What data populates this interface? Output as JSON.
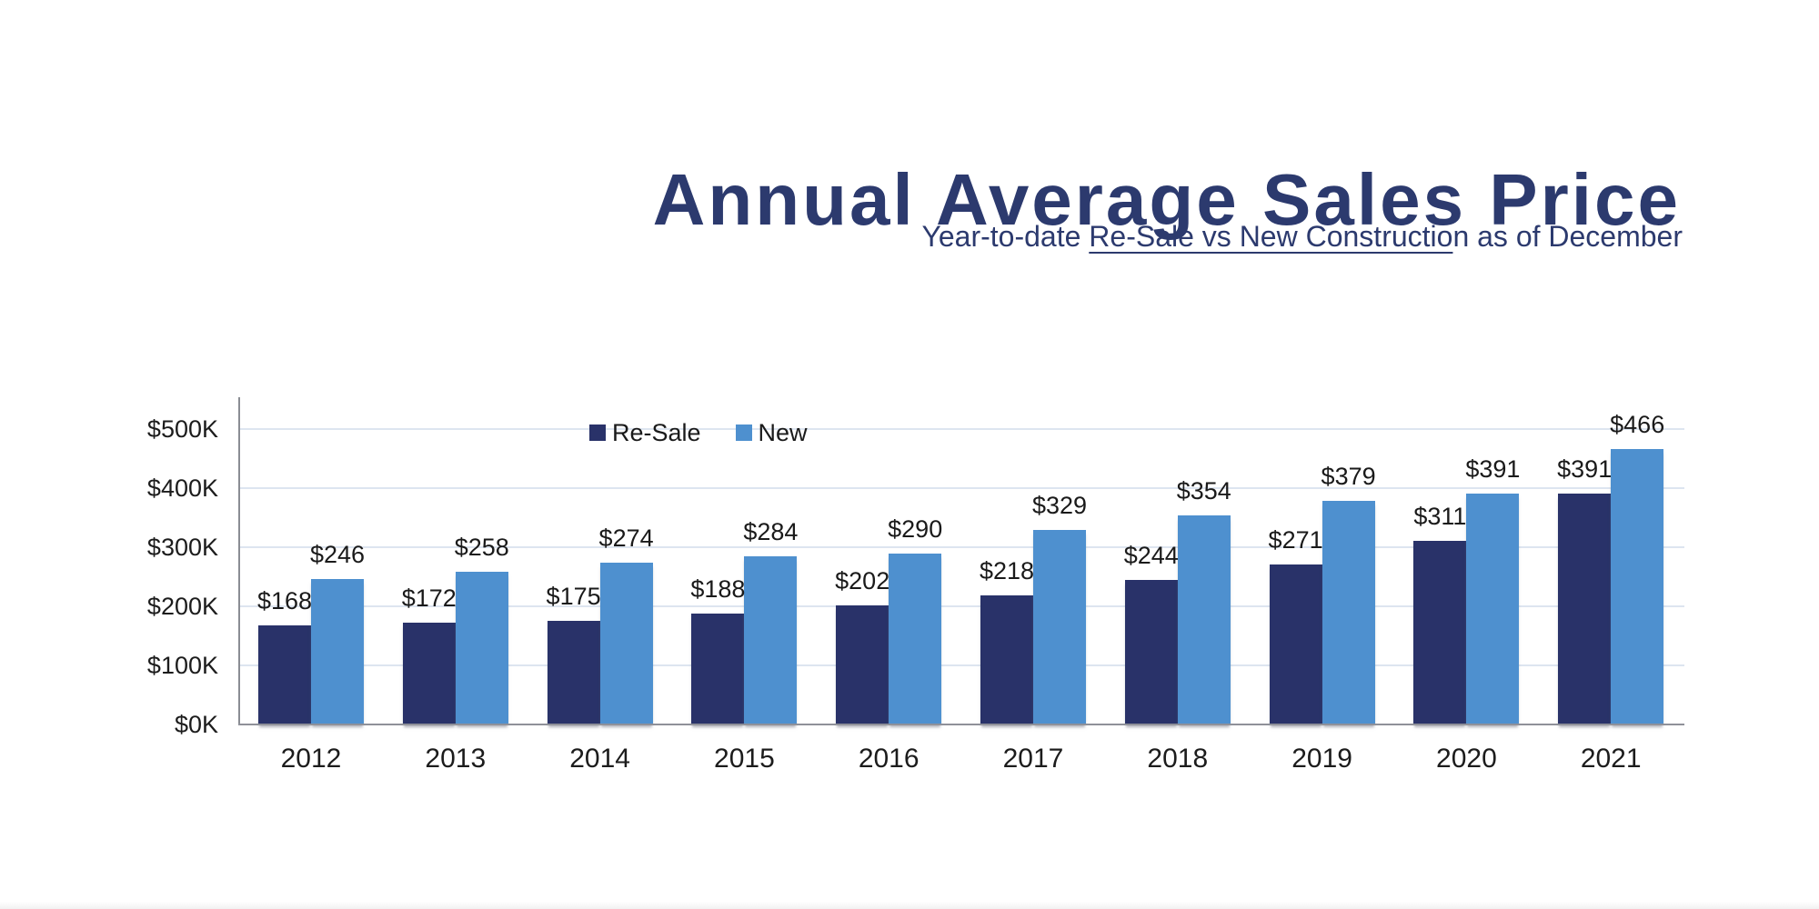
{
  "header": {
    "title": "Annual Average Sales Price",
    "subtitle_prefix": "Year-to-date ",
    "subtitle_underlined": "Re-Sale vs New Constructio",
    "subtitle_suffix": "n as of December"
  },
  "colors": {
    "title_navy": "#2c3a6e",
    "resale_bar": "#293269",
    "new_bar": "#4e90cf",
    "gridline": "#dde5f0",
    "axis_line": "#8f9199",
    "label_text": "#1a1a1a"
  },
  "chart_data": {
    "type": "bar",
    "title": "Annual Average Sales Price",
    "subtitle": "Year-to-date Re-Sale vs New Construction as of December",
    "categories": [
      "2012",
      "2013",
      "2014",
      "2015",
      "2016",
      "2017",
      "2018",
      "2019",
      "2020",
      "2021"
    ],
    "series": [
      {
        "name": "Re-Sale",
        "color": "#293269",
        "values": [
          168,
          172,
          175,
          188,
          202,
          218,
          244,
          271,
          311,
          391
        ]
      },
      {
        "name": "New",
        "color": "#4e90cf",
        "values": [
          246,
          258,
          274,
          284,
          290,
          329,
          354,
          379,
          391,
          466
        ]
      }
    ],
    "value_prefix": "$",
    "value_labels": {
      "Re-Sale": [
        "$168",
        "$172",
        "$175",
        "$188",
        "$202",
        "$218",
        "$244",
        "$271",
        "$311",
        "$391"
      ],
      "New": [
        "$246",
        "$258",
        "$274",
        "$284",
        "$290",
        "$329",
        "$354",
        "$379",
        "$391",
        "$466"
      ]
    },
    "y_ticks": [
      "$0K",
      "$100K",
      "$200K",
      "$300K",
      "$400K",
      "$500K"
    ],
    "y_tick_values": [
      0,
      100,
      200,
      300,
      400,
      500
    ],
    "ylabel": "",
    "xlabel": "",
    "ylim": [
      0,
      500
    ],
    "unit": "K USD",
    "grid": true,
    "legend_position": "top-inside-left-of-center"
  }
}
